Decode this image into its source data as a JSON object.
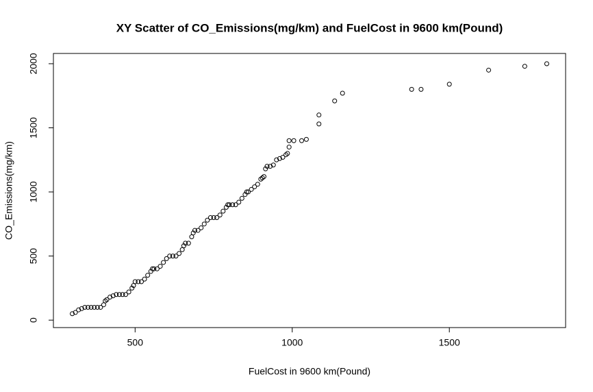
{
  "chart_data": {
    "type": "scatter",
    "title": "XY Scatter of CO_Emissions(mg/km) and FuelCost in 9600 km(Pound)",
    "x_label": "FuelCost in 9600 km(Pound)",
    "y_label": "CO_Emissions(mg/km)",
    "x": [
      300,
      310,
      320,
      330,
      340,
      350,
      360,
      370,
      380,
      390,
      400,
      405,
      410,
      420,
      430,
      440,
      450,
      460,
      470,
      480,
      490,
      495,
      500,
      510,
      520,
      530,
      540,
      550,
      555,
      560,
      570,
      580,
      590,
      600,
      610,
      620,
      630,
      640,
      650,
      655,
      660,
      670,
      680,
      685,
      690,
      700,
      710,
      720,
      730,
      740,
      750,
      760,
      770,
      780,
      790,
      795,
      800,
      810,
      820,
      830,
      840,
      850,
      855,
      860,
      870,
      880,
      890,
      900,
      905,
      910,
      915,
      920,
      930,
      940,
      950,
      960,
      970,
      980,
      985,
      990,
      990,
      1005,
      1030,
      1045,
      1085,
      1085,
      1135,
      1160,
      1380,
      1410,
      1500,
      1625,
      1740,
      1810
    ],
    "y": [
      50,
      60,
      80,
      90,
      100,
      100,
      100,
      100,
      100,
      100,
      120,
      150,
      160,
      180,
      190,
      200,
      200,
      200,
      200,
      220,
      250,
      270,
      300,
      300,
      300,
      320,
      350,
      380,
      400,
      400,
      400,
      420,
      450,
      480,
      500,
      500,
      500,
      520,
      550,
      580,
      600,
      600,
      650,
      680,
      700,
      700,
      720,
      750,
      780,
      800,
      800,
      800,
      820,
      850,
      880,
      900,
      900,
      900,
      900,
      920,
      950,
      980,
      1000,
      1000,
      1020,
      1040,
      1060,
      1100,
      1110,
      1120,
      1180,
      1200,
      1200,
      1210,
      1250,
      1260,
      1270,
      1290,
      1300,
      1350,
      1400,
      1400,
      1400,
      1410,
      1530,
      1600,
      1710,
      1770,
      1800,
      1800,
      1840,
      1950,
      1980,
      2000
    ],
    "xlim": [
      240,
      1870
    ],
    "ylim": [
      -58,
      2080
    ],
    "xticks": [
      500,
      1000,
      1500
    ],
    "yticks": [
      0,
      500,
      1000,
      1500,
      2000
    ]
  }
}
